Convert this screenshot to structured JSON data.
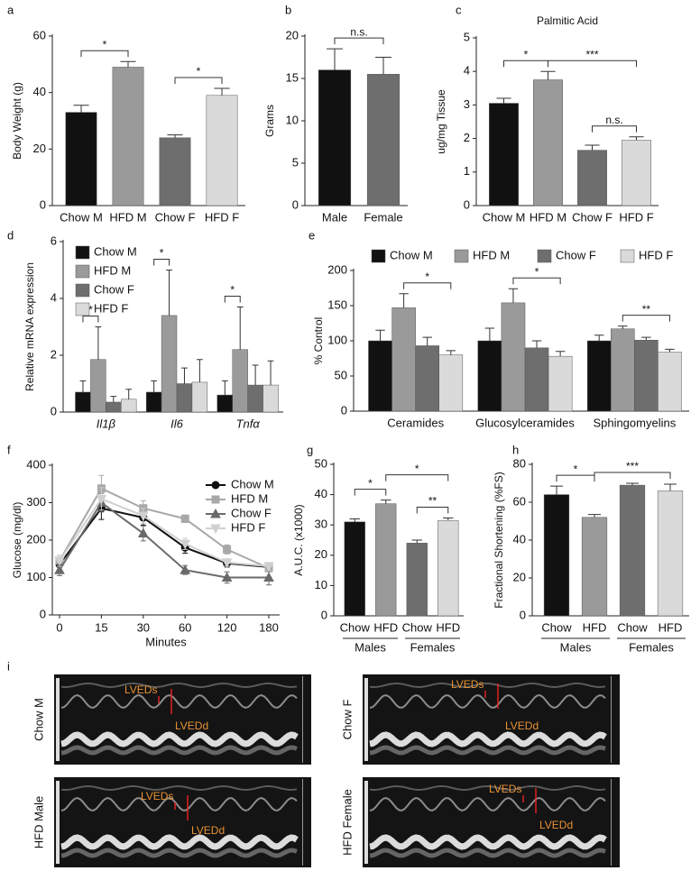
{
  "chart_data": [
    {
      "panel": "a",
      "type": "bar",
      "ylabel": "Body Weight (g)",
      "categories": [
        "Chow M",
        "HFD M",
        "Chow F",
        "HFD F"
      ],
      "values": [
        33,
        49,
        24,
        39
      ],
      "errors": [
        2.5,
        2,
        1,
        2.5
      ],
      "colors": [
        "#111111",
        "#9a9a9a",
        "#6e6e6e",
        "#dadada"
      ],
      "ylim": [
        0,
        60
      ],
      "yticks": [
        0,
        20,
        40,
        60
      ],
      "annotations": [
        "*",
        "*"
      ]
    },
    {
      "panel": "b",
      "type": "bar",
      "ylabel": "Grams",
      "categories": [
        "Male",
        "Female"
      ],
      "values": [
        16,
        15.5
      ],
      "errors": [
        2.5,
        2
      ],
      "colors": [
        "#111111",
        "#6e6e6e"
      ],
      "ylim": [
        0,
        20
      ],
      "yticks": [
        0,
        5,
        10,
        15,
        20
      ],
      "annotations": [
        "n.s."
      ]
    },
    {
      "panel": "c",
      "type": "bar",
      "title": "Palmitic Acid",
      "ylabel": "ug/mg Tissue",
      "categories": [
        "Chow M",
        "HFD M",
        "Chow F",
        "HFD F"
      ],
      "values": [
        3.05,
        3.75,
        1.65,
        1.95
      ],
      "errors": [
        0.15,
        0.25,
        0.15,
        0.1
      ],
      "colors": [
        "#111111",
        "#9a9a9a",
        "#6e6e6e",
        "#dadada"
      ],
      "ylim": [
        0,
        5
      ],
      "yticks": [
        0,
        1,
        2,
        3,
        4,
        5
      ],
      "annotations": [
        "*",
        "***",
        "n.s."
      ]
    },
    {
      "panel": "d",
      "type": "bar",
      "ylabel": "Relative mRNA expression",
      "legend": "top-left",
      "categories": [
        "Il1β",
        "Il6",
        "Tnfα"
      ],
      "ylim": [
        0,
        6
      ],
      "yticks": [
        0,
        2,
        4,
        6
      ],
      "annotations": [
        "*",
        "*",
        "*"
      ],
      "series": [
        {
          "name": "Chow M",
          "color": "#111111",
          "values": [
            0.7,
            0.7,
            0.6
          ],
          "errors": [
            0.4,
            0.4,
            0.5
          ]
        },
        {
          "name": "HFD M",
          "color": "#9a9a9a",
          "values": [
            1.85,
            3.4,
            2.2
          ],
          "errors": [
            1.15,
            1.6,
            1.5
          ]
        },
        {
          "name": "Chow F",
          "color": "#6e6e6e",
          "values": [
            0.35,
            1.0,
            0.95
          ],
          "errors": [
            0.2,
            0.55,
            0.7
          ]
        },
        {
          "name": "HFD F",
          "color": "#dadada",
          "values": [
            0.45,
            1.05,
            0.95
          ],
          "errors": [
            0.35,
            0.8,
            0.85
          ]
        }
      ]
    },
    {
      "panel": "e",
      "type": "bar",
      "ylabel": "% Control",
      "legend": "top",
      "categories": [
        "Ceramides",
        "Glucosylceramides",
        "Sphingomyelins"
      ],
      "ylim": [
        0,
        200
      ],
      "yticks": [
        0,
        50,
        100,
        150,
        200
      ],
      "annotations": [
        "*",
        "*",
        "**"
      ],
      "series": [
        {
          "name": "Chow M",
          "color": "#111111",
          "values": [
            100,
            100,
            100
          ],
          "errors": [
            15,
            18,
            8
          ]
        },
        {
          "name": "HFD M",
          "color": "#9a9a9a",
          "values": [
            147,
            154,
            117
          ],
          "errors": [
            20,
            20,
            4
          ]
        },
        {
          "name": "Chow F",
          "color": "#6e6e6e",
          "values": [
            93,
            90,
            101
          ],
          "errors": [
            12,
            10,
            4
          ]
        },
        {
          "name": "HFD F",
          "color": "#dadada",
          "values": [
            80,
            78,
            84
          ],
          "errors": [
            6,
            7,
            4
          ]
        }
      ]
    },
    {
      "panel": "f",
      "type": "line",
      "xlabel": "Minutes",
      "ylabel": "Glucose (mg/dl)",
      "legend": "top-right",
      "categories": [
        "0",
        "15",
        "30",
        "60",
        "120",
        "180"
      ],
      "ylim": [
        0,
        400
      ],
      "yticks": [
        0,
        100,
        200,
        300,
        400
      ],
      "series": [
        {
          "name": "Chow M",
          "color": "#111111",
          "marker": "circle",
          "values": [
            135,
            285,
            260,
            180,
            138,
            128
          ],
          "errors": [
            15,
            30,
            20,
            15,
            10,
            10
          ]
        },
        {
          "name": "HFD M",
          "color": "#a8a8a8",
          "marker": "square",
          "values": [
            145,
            338,
            285,
            257,
            175,
            125
          ],
          "errors": [
            15,
            35,
            20,
            10,
            12,
            10
          ]
        },
        {
          "name": "Chow F",
          "color": "#6a6a6a",
          "marker": "triangle",
          "values": [
            120,
            300,
            218,
            120,
            100,
            100
          ],
          "errors": [
            15,
            25,
            20,
            12,
            15,
            20
          ]
        },
        {
          "name": "HFD F",
          "color": "#d0d0d0",
          "marker": "triangle-down",
          "values": [
            145,
            310,
            265,
            190,
            140,
            130
          ],
          "errors": [
            15,
            30,
            20,
            15,
            10,
            10
          ]
        }
      ]
    },
    {
      "panel": "g",
      "type": "bar",
      "ylabel": "A.U.C. (x1000)",
      "categories": [
        "Chow",
        "HFD",
        "Chow",
        "HFD"
      ],
      "group_labels": [
        "Males",
        "Females"
      ],
      "values": [
        31,
        37,
        24,
        31.5
      ],
      "errors": [
        1,
        1.2,
        1,
        0.8
      ],
      "colors": [
        "#111111",
        "#9a9a9a",
        "#6e6e6e",
        "#dadada"
      ],
      "ylim": [
        0,
        50
      ],
      "yticks": [
        0,
        10,
        20,
        30,
        40,
        50
      ],
      "annotations": [
        "*",
        "*",
        "**"
      ]
    },
    {
      "panel": "h",
      "type": "bar",
      "ylabel": "Fractional Shortening (%FS)",
      "categories": [
        "Chow",
        "HFD",
        "Chow",
        "HFD"
      ],
      "group_labels": [
        "Males",
        "Females"
      ],
      "values": [
        64,
        52,
        69,
        66
      ],
      "errors": [
        4.5,
        1.5,
        1,
        3.5
      ],
      "colors": [
        "#111111",
        "#9a9a9a",
        "#6e6e6e",
        "#dadada"
      ],
      "ylim": [
        0,
        80
      ],
      "yticks": [
        0,
        20,
        40,
        60,
        80
      ],
      "annotations": [
        "*",
        "***"
      ]
    }
  ],
  "echo": {
    "panel": "i",
    "images": [
      {
        "label": "Chow M",
        "annotations": [
          "LVEDs",
          "LVEDd"
        ]
      },
      {
        "label": "Chow F",
        "annotations": [
          "LVEDs",
          "LVEDd"
        ]
      },
      {
        "label": "HFD Male",
        "annotations": [
          "LVEDs",
          "LVEDd"
        ]
      },
      {
        "label": "HFD Female",
        "annotations": [
          "LVEDs",
          "LVEDd"
        ]
      }
    ]
  }
}
